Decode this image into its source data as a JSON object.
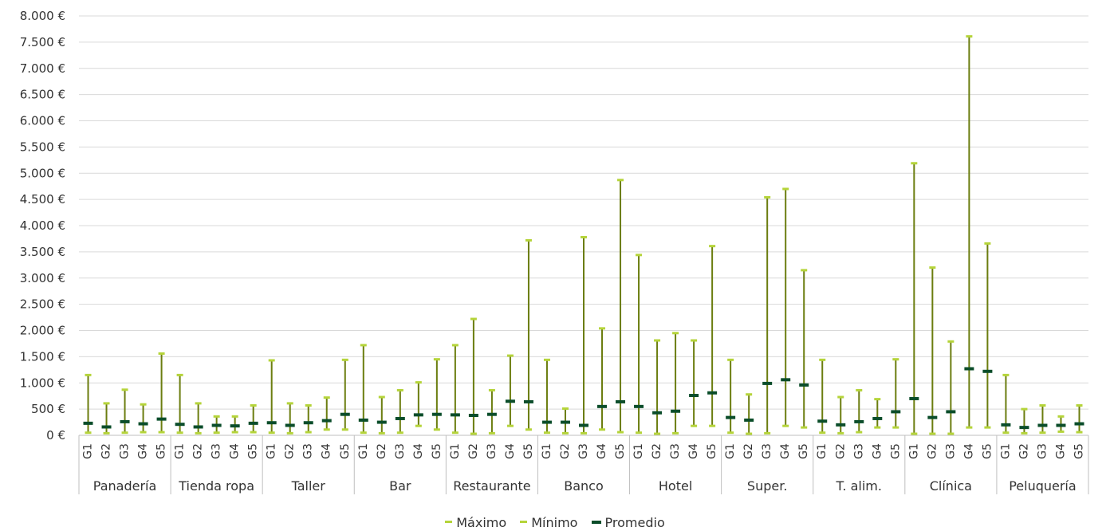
{
  "chart_data": {
    "type": "range",
    "title": "",
    "xlabel": "",
    "ylabel": "",
    "ylim": [
      0,
      8000
    ],
    "yticks": [
      0,
      500,
      1000,
      1500,
      2000,
      2500,
      3000,
      3500,
      4000,
      4500,
      5000,
      5500,
      6000,
      6500,
      7000,
      7500,
      8000
    ],
    "ytick_labels": [
      "0 €",
      "500 €",
      "1.000 €",
      "1.500 €",
      "2.000 €",
      "2.500 €",
      "3.000 €",
      "3.500 €",
      "4.000 €",
      "4.500 €",
      "5.000 €",
      "5.500 €",
      "6.000 €",
      "6.500 €",
      "7.000 €",
      "7.500 €",
      "8.000 €"
    ],
    "grid": true,
    "legend_position": "bottom",
    "colors": {
      "maximo": "#b5d43a",
      "minimo": "#b5d43a",
      "promedio": "#0b4d2a",
      "stem": "#6b7d0f",
      "grid": "#d9d9d9"
    },
    "subcategories": [
      "G1",
      "G2",
      "G3",
      "G4",
      "G5"
    ],
    "legend": [
      {
        "key": "maximo",
        "label": "Máximo"
      },
      {
        "key": "minimo",
        "label": "Mínimo"
      },
      {
        "key": "promedio",
        "label": "Promedio"
      }
    ],
    "groups": [
      {
        "name": "Panadería",
        "max": [
          1150,
          610,
          870,
          590,
          1560
        ],
        "min": [
          50,
          40,
          50,
          60,
          60
        ],
        "avg": [
          230,
          160,
          260,
          220,
          310
        ]
      },
      {
        "name": "Tienda ropa",
        "max": [
          1150,
          610,
          360,
          360,
          570
        ],
        "min": [
          50,
          40,
          50,
          60,
          60
        ],
        "avg": [
          210,
          160,
          190,
          180,
          230
        ]
      },
      {
        "name": "Taller",
        "max": [
          1430,
          610,
          570,
          720,
          1440
        ],
        "min": [
          50,
          40,
          60,
          110,
          110
        ],
        "avg": [
          240,
          190,
          240,
          280,
          400
        ]
      },
      {
        "name": "Bar",
        "max": [
          1720,
          730,
          860,
          1010,
          1450
        ],
        "min": [
          50,
          40,
          50,
          180,
          110
        ],
        "avg": [
          290,
          250,
          320,
          390,
          400
        ]
      },
      {
        "name": "Restaurante",
        "max": [
          1720,
          2220,
          860,
          1520,
          3720
        ],
        "min": [
          50,
          30,
          40,
          180,
          110
        ],
        "avg": [
          390,
          380,
          400,
          650,
          640
        ]
      },
      {
        "name": "Banco",
        "max": [
          1440,
          510,
          3780,
          2040,
          4870
        ],
        "min": [
          50,
          40,
          40,
          110,
          60
        ],
        "avg": [
          250,
          250,
          190,
          550,
          640
        ]
      },
      {
        "name": "Hotel",
        "max": [
          3440,
          1810,
          1950,
          1810,
          3610
        ],
        "min": [
          50,
          30,
          40,
          180,
          180
        ],
        "avg": [
          550,
          430,
          460,
          760,
          810
        ]
      },
      {
        "name": "Super.",
        "max": [
          1440,
          780,
          4540,
          4700,
          3150
        ],
        "min": [
          50,
          30,
          40,
          180,
          150
        ],
        "avg": [
          340,
          290,
          990,
          1060,
          960
        ]
      },
      {
        "name": "T. alim.",
        "max": [
          1440,
          730,
          860,
          690,
          1450
        ],
        "min": [
          50,
          40,
          60,
          150,
          150
        ],
        "avg": [
          270,
          200,
          260,
          320,
          450
        ]
      },
      {
        "name": "Clínica",
        "max": [
          5190,
          3200,
          1790,
          7610,
          3660
        ],
        "min": [
          30,
          30,
          30,
          150,
          150
        ],
        "avg": [
          700,
          340,
          450,
          1270,
          1220
        ]
      },
      {
        "name": "Peluquería",
        "max": [
          1150,
          500,
          570,
          360,
          570
        ],
        "min": [
          50,
          40,
          50,
          70,
          60
        ],
        "avg": [
          200,
          150,
          190,
          190,
          220
        ]
      }
    ]
  }
}
